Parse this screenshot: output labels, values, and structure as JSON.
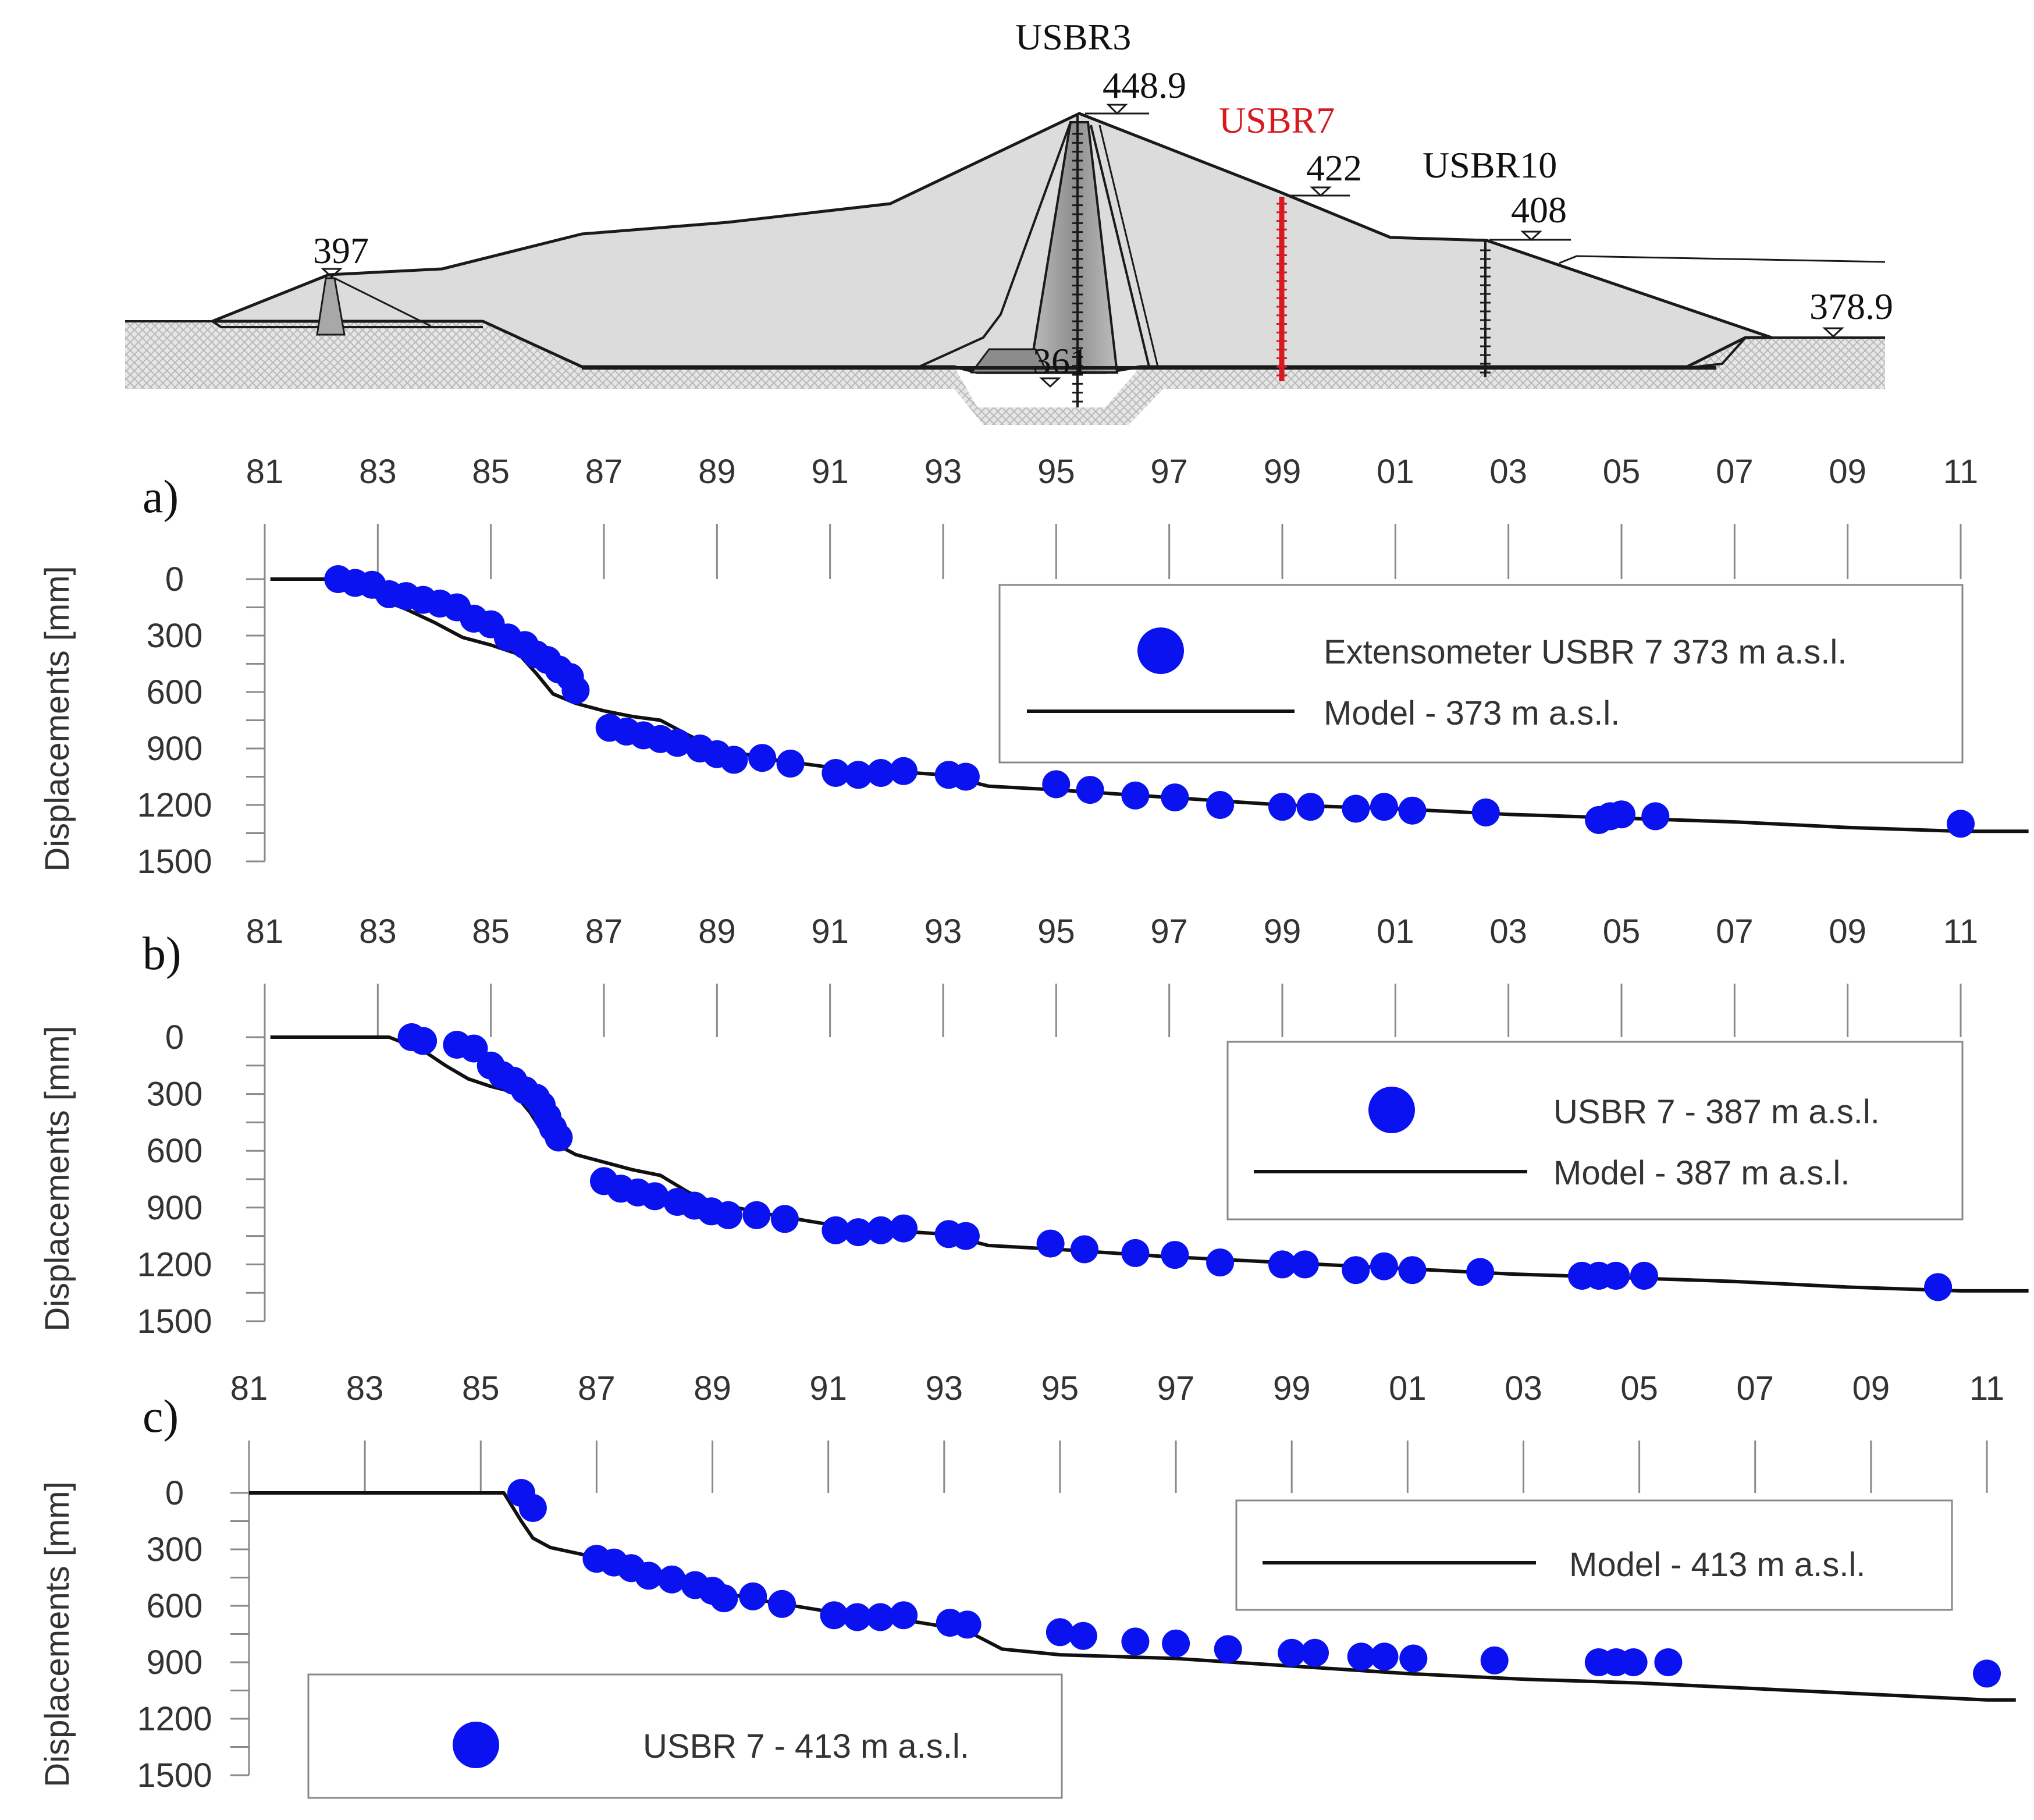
{
  "section": {
    "instruments": {
      "usbr3": "USBR3",
      "usbr7": "USBR7",
      "usbr10": "USBR10"
    },
    "elevations": {
      "crest": "448.9",
      "berm_usbr7": "422",
      "berm_usbr10": "408",
      "upstream_cofferdam": "397",
      "foundation": "361",
      "downstream_toe": "378.9"
    },
    "colors": {
      "highlight": "#d71920",
      "fill": "#dcdcdc",
      "core": "#a9a9a9"
    }
  },
  "chart_data": [
    {
      "type": "scatter",
      "panel": "a)",
      "ylabel": "Displacements [mm]",
      "x_tick_labels": [
        "81",
        "83",
        "85",
        "87",
        "89",
        "91",
        "93",
        "95",
        "97",
        "99",
        "01",
        "03",
        "05",
        "07",
        "09",
        "11"
      ],
      "x_tick_years": [
        1981,
        1983,
        1985,
        1987,
        1989,
        1991,
        1993,
        1995,
        1997,
        1999,
        2001,
        2003,
        2005,
        2007,
        2009,
        2011
      ],
      "y_ticks": [
        0,
        300,
        600,
        900,
        1200,
        1500
      ],
      "ylim": [
        0,
        1500
      ],
      "xlim": [
        1981,
        2012.2
      ],
      "legend": {
        "points": "Extensometer USBR 7 373 m a.s.l.",
        "line": "Model - 373 m a.s.l."
      },
      "colors": {
        "points": "#0a12f0",
        "line": "#111111"
      },
      "model": [
        [
          1981.1,
          0
        ],
        [
          1982.2,
          0
        ],
        [
          1982.6,
          40
        ],
        [
          1983.0,
          100
        ],
        [
          1983.5,
          160
        ],
        [
          1984.0,
          230
        ],
        [
          1984.5,
          310
        ],
        [
          1985.0,
          350
        ],
        [
          1985.5,
          400
        ],
        [
          1985.8,
          500
        ],
        [
          1986.1,
          610
        ],
        [
          1986.5,
          660
        ],
        [
          1987.0,
          700
        ],
        [
          1987.5,
          730
        ],
        [
          1988.0,
          750
        ],
        [
          1988.5,
          830
        ],
        [
          1989.0,
          900
        ],
        [
          1990.0,
          960
        ],
        [
          1991.0,
          1000
        ],
        [
          1992.0,
          1020
        ],
        [
          1993.0,
          1040
        ],
        [
          1993.8,
          1100
        ],
        [
          1995.0,
          1120
        ],
        [
          1997.0,
          1160
        ],
        [
          1999.0,
          1200
        ],
        [
          2001.0,
          1220
        ],
        [
          2003.0,
          1250
        ],
        [
          2005.0,
          1270
        ],
        [
          2007.0,
          1290
        ],
        [
          2009.0,
          1320
        ],
        [
          2011.0,
          1340
        ],
        [
          2012.2,
          1340
        ]
      ],
      "points": [
        [
          1982.3,
          0
        ],
        [
          1982.6,
          20
        ],
        [
          1982.9,
          30
        ],
        [
          1983.2,
          80
        ],
        [
          1983.5,
          90
        ],
        [
          1983.8,
          110
        ],
        [
          1984.1,
          130
        ],
        [
          1984.4,
          150
        ],
        [
          1984.7,
          210
        ],
        [
          1985.0,
          240
        ],
        [
          1985.3,
          310
        ],
        [
          1985.6,
          350
        ],
        [
          1985.8,
          400
        ],
        [
          1986.0,
          430
        ],
        [
          1986.2,
          480
        ],
        [
          1986.4,
          520
        ],
        [
          1986.5,
          590
        ],
        [
          1987.1,
          790
        ],
        [
          1987.4,
          810
        ],
        [
          1987.7,
          830
        ],
        [
          1988.0,
          850
        ],
        [
          1988.3,
          870
        ],
        [
          1988.7,
          900
        ],
        [
          1989.0,
          930
        ],
        [
          1989.3,
          960
        ],
        [
          1989.8,
          950
        ],
        [
          1990.3,
          980
        ],
        [
          1991.1,
          1030
        ],
        [
          1991.5,
          1040
        ],
        [
          1991.9,
          1030
        ],
        [
          1992.3,
          1020
        ],
        [
          1993.1,
          1040
        ],
        [
          1993.4,
          1050
        ],
        [
          1995.0,
          1090
        ],
        [
          1995.6,
          1120
        ],
        [
          1996.4,
          1150
        ],
        [
          1997.1,
          1160
        ],
        [
          1997.9,
          1200
        ],
        [
          1999.0,
          1210
        ],
        [
          1999.5,
          1210
        ],
        [
          2000.3,
          1220
        ],
        [
          2000.8,
          1210
        ],
        [
          2001.3,
          1230
        ],
        [
          2002.6,
          1240
        ],
        [
          2004.6,
          1280
        ],
        [
          2004.8,
          1260
        ],
        [
          2005.0,
          1250
        ],
        [
          2005.6,
          1260
        ],
        [
          2011.0,
          1300
        ]
      ]
    },
    {
      "type": "scatter",
      "panel": "b)",
      "ylabel": "Displacements [mm]",
      "x_tick_labels": [
        "81",
        "83",
        "85",
        "87",
        "89",
        "91",
        "93",
        "95",
        "97",
        "99",
        "01",
        "03",
        "05",
        "07",
        "09",
        "11"
      ],
      "x_tick_years": [
        1981,
        1983,
        1985,
        1987,
        1989,
        1991,
        1993,
        1995,
        1997,
        1999,
        2001,
        2003,
        2005,
        2007,
        2009,
        2011
      ],
      "y_ticks": [
        0,
        300,
        600,
        900,
        1200,
        1500
      ],
      "ylim": [
        0,
        1500
      ],
      "xlim": [
        1981,
        2012.2
      ],
      "legend": {
        "points": "USBR 7 - 387 m a.s.l.",
        "line": "Model - 387 m a.s.l."
      },
      "colors": {
        "points": "#0a12f0",
        "line": "#111111"
      },
      "model": [
        [
          1981.1,
          0
        ],
        [
          1983.2,
          0
        ],
        [
          1983.8,
          70
        ],
        [
          1984.2,
          150
        ],
        [
          1984.6,
          220
        ],
        [
          1985.0,
          260
        ],
        [
          1985.4,
          290
        ],
        [
          1985.7,
          400
        ],
        [
          1986.0,
          540
        ],
        [
          1986.5,
          620
        ],
        [
          1987.0,
          660
        ],
        [
          1987.5,
          700
        ],
        [
          1988.0,
          730
        ],
        [
          1988.5,
          820
        ],
        [
          1989.0,
          880
        ],
        [
          1990.0,
          940
        ],
        [
          1991.0,
          990
        ],
        [
          1992.0,
          1020
        ],
        [
          1993.0,
          1040
        ],
        [
          1993.8,
          1100
        ],
        [
          1995.0,
          1120
        ],
        [
          1997.0,
          1160
        ],
        [
          1999.0,
          1190
        ],
        [
          2001.0,
          1220
        ],
        [
          2003.0,
          1250
        ],
        [
          2005.0,
          1270
        ],
        [
          2007.0,
          1290
        ],
        [
          2009.0,
          1320
        ],
        [
          2011.0,
          1340
        ],
        [
          2012.2,
          1340
        ]
      ],
      "points": [
        [
          1983.6,
          0
        ],
        [
          1983.8,
          20
        ],
        [
          1984.4,
          40
        ],
        [
          1984.7,
          60
        ],
        [
          1985.0,
          150
        ],
        [
          1985.2,
          200
        ],
        [
          1985.4,
          230
        ],
        [
          1985.6,
          280
        ],
        [
          1985.8,
          320
        ],
        [
          1985.9,
          360
        ],
        [
          1986.0,
          420
        ],
        [
          1986.1,
          480
        ],
        [
          1986.2,
          530
        ],
        [
          1987.0,
          760
        ],
        [
          1987.3,
          800
        ],
        [
          1987.6,
          820
        ],
        [
          1987.9,
          840
        ],
        [
          1988.3,
          870
        ],
        [
          1988.6,
          890
        ],
        [
          1988.9,
          920
        ],
        [
          1989.2,
          940
        ],
        [
          1989.7,
          940
        ],
        [
          1990.2,
          960
        ],
        [
          1991.1,
          1020
        ],
        [
          1991.5,
          1030
        ],
        [
          1991.9,
          1020
        ],
        [
          1992.3,
          1010
        ],
        [
          1993.1,
          1040
        ],
        [
          1993.4,
          1050
        ],
        [
          1994.9,
          1090
        ],
        [
          1995.5,
          1120
        ],
        [
          1996.4,
          1140
        ],
        [
          1997.1,
          1150
        ],
        [
          1997.9,
          1190
        ],
        [
          1999.0,
          1200
        ],
        [
          1999.4,
          1200
        ],
        [
          2000.3,
          1230
        ],
        [
          2000.8,
          1210
        ],
        [
          2001.3,
          1230
        ],
        [
          2002.5,
          1240
        ],
        [
          2004.3,
          1260
        ],
        [
          2004.6,
          1260
        ],
        [
          2004.9,
          1260
        ],
        [
          2005.4,
          1260
        ],
        [
          2010.6,
          1320
        ]
      ]
    },
    {
      "type": "scatter",
      "panel": "c)",
      "ylabel": "Displacements [mm]",
      "x_tick_labels": [
        "81",
        "83",
        "85",
        "87",
        "89",
        "91",
        "93",
        "95",
        "97",
        "99",
        "01",
        "03",
        "05",
        "07",
        "09",
        "11"
      ],
      "x_tick_years": [
        1981,
        1983,
        1985,
        1987,
        1989,
        1991,
        1993,
        1995,
        1997,
        1999,
        2001,
        2003,
        2005,
        2007,
        2009,
        2011
      ],
      "y_ticks": [
        0,
        300,
        600,
        900,
        1200,
        1500
      ],
      "ylim": [
        0,
        1500
      ],
      "xlim": [
        1981,
        2012.2
      ],
      "legend": {
        "points": "USBR 7 - 413 m a.s.l.",
        "line": "Model - 413 m a.s.l."
      },
      "colors": {
        "points": "#0a12f0",
        "line": "#111111"
      },
      "model": [
        [
          1981.0,
          0
        ],
        [
          1985.4,
          0
        ],
        [
          1985.7,
          150
        ],
        [
          1985.9,
          240
        ],
        [
          1986.2,
          290
        ],
        [
          1986.8,
          330
        ],
        [
          1987.5,
          390
        ],
        [
          1988.0,
          440
        ],
        [
          1989.0,
          520
        ],
        [
          1990.0,
          580
        ],
        [
          1991.0,
          630
        ],
        [
          1992.0,
          660
        ],
        [
          1993.0,
          710
        ],
        [
          1993.5,
          750
        ],
        [
          1994.0,
          830
        ],
        [
          1995.0,
          860
        ],
        [
          1997.0,
          880
        ],
        [
          1999.0,
          920
        ],
        [
          2001.0,
          960
        ],
        [
          2003.0,
          990
        ],
        [
          2005.0,
          1010
        ],
        [
          2007.0,
          1040
        ],
        [
          2009.0,
          1070
        ],
        [
          2011.0,
          1100
        ],
        [
          2011.5,
          1100
        ]
      ],
      "points": [
        [
          1985.7,
          0
        ],
        [
          1985.9,
          80
        ],
        [
          1987.0,
          350
        ],
        [
          1987.3,
          370
        ],
        [
          1987.6,
          400
        ],
        [
          1987.9,
          440
        ],
        [
          1988.3,
          460
        ],
        [
          1988.7,
          490
        ],
        [
          1989.0,
          520
        ],
        [
          1989.2,
          560
        ],
        [
          1989.7,
          550
        ],
        [
          1990.2,
          590
        ],
        [
          1991.1,
          650
        ],
        [
          1991.5,
          660
        ],
        [
          1991.9,
          660
        ],
        [
          1992.3,
          650
        ],
        [
          1993.1,
          690
        ],
        [
          1993.4,
          700
        ],
        [
          1995.0,
          740
        ],
        [
          1995.4,
          760
        ],
        [
          1996.3,
          790
        ],
        [
          1997.0,
          800
        ],
        [
          1997.9,
          830
        ],
        [
          1999.0,
          850
        ],
        [
          1999.4,
          850
        ],
        [
          2000.2,
          870
        ],
        [
          2000.6,
          870
        ],
        [
          2001.1,
          880
        ],
        [
          2002.5,
          890
        ],
        [
          2004.3,
          900
        ],
        [
          2004.6,
          900
        ],
        [
          2004.9,
          900
        ],
        [
          2005.5,
          900
        ],
        [
          2011.0,
          960
        ]
      ]
    }
  ]
}
